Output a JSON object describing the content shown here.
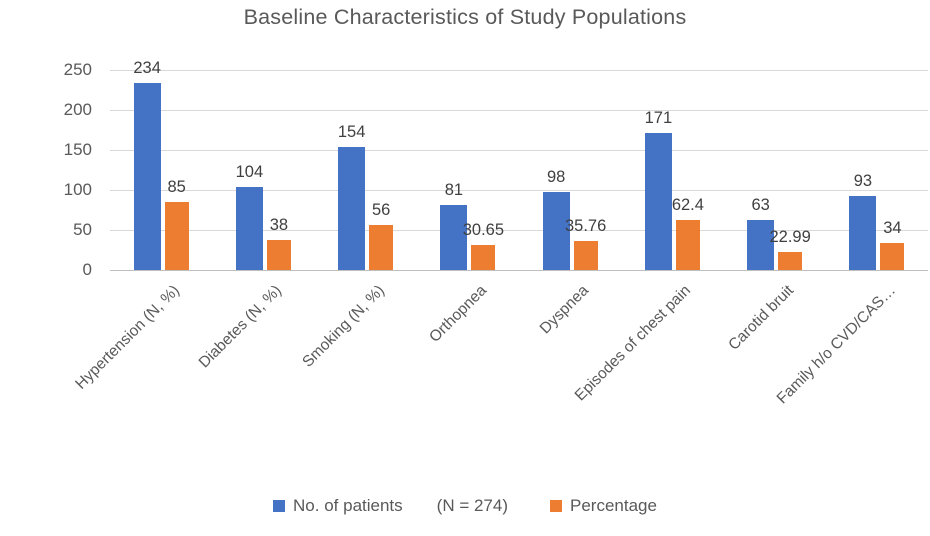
{
  "chart_data": {
    "type": "bar",
    "title": "Baseline Characteristics of Study Populations",
    "categories": [
      "Hypertension (N, %)",
      "Diabetes (N, %)",
      "Smoking (N, %)",
      "Orthopnea",
      "Dyspnea",
      "Episodes of chest pain",
      "Carotid bruit",
      "Family h/o CVD/CAS…"
    ],
    "series": [
      {
        "name": "No. of patients",
        "color": "#4472C4",
        "values": [
          234,
          104,
          154,
          81,
          98,
          171,
          63,
          93
        ],
        "labels": [
          "234",
          "104",
          "154",
          "81",
          "98",
          "171",
          "63",
          "93"
        ]
      },
      {
        "name": "Percentage",
        "color": "#ED7D31",
        "values": [
          85,
          38,
          56,
          30.65,
          35.76,
          62.4,
          22.99,
          34
        ],
        "labels": [
          "85",
          "38",
          "56",
          "30.65",
          "35.76",
          "62.4",
          "22.99",
          "34"
        ]
      }
    ],
    "ylim": [
      0,
      250
    ],
    "yticks": [
      0,
      50,
      100,
      150,
      200,
      250
    ],
    "ytick_labels": [
      "0",
      "50",
      "100",
      "150",
      "200",
      "250"
    ],
    "grid": true,
    "legend_position": "bottom",
    "legend": {
      "series1_label": "No. of patients",
      "note": "(N = 274)",
      "series2_label": "Percentage"
    },
    "colors": {
      "bar_blue": "#4472C4",
      "bar_orange": "#ED7D31",
      "gridline": "#D9D9D9",
      "text": "#595959",
      "data_label": "#404040"
    }
  }
}
